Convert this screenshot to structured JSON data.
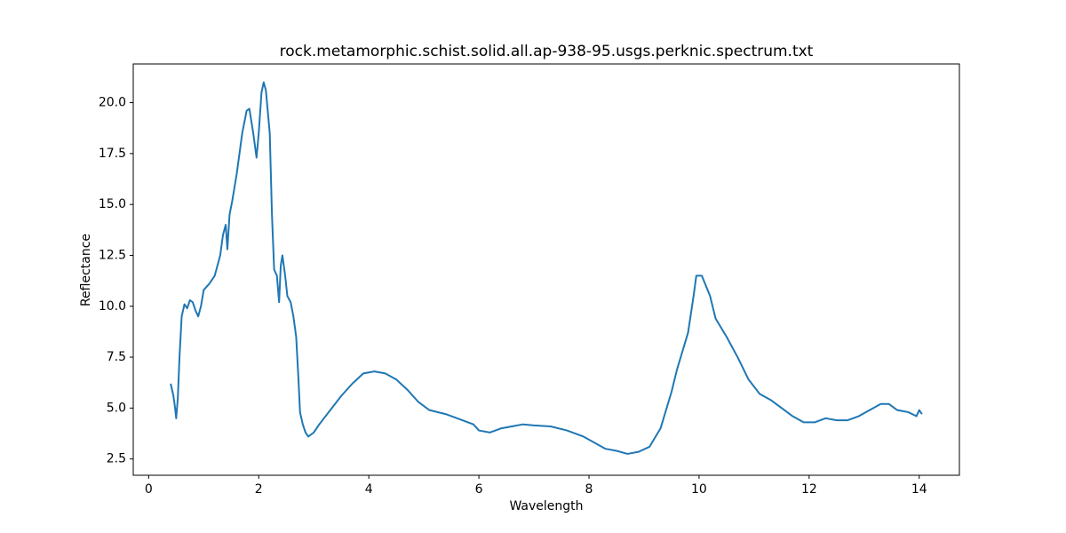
{
  "chart_data": {
    "type": "line",
    "title": "rock.metamorphic.schist.solid.all.ap-938-95.usgs.perknic.spectrum.txt",
    "xlabel": "Wavelength",
    "ylabel": "Reflectance",
    "color": "#1f77b4",
    "x": [
      0.4,
      0.45,
      0.48,
      0.5,
      0.53,
      0.56,
      0.6,
      0.65,
      0.7,
      0.75,
      0.8,
      0.85,
      0.9,
      0.95,
      1.0,
      1.1,
      1.2,
      1.3,
      1.35,
      1.4,
      1.43,
      1.47,
      1.52,
      1.6,
      1.7,
      1.78,
      1.83,
      1.9,
      1.96,
      2.0,
      2.05,
      2.09,
      2.13,
      2.2,
      2.24,
      2.28,
      2.33,
      2.37,
      2.4,
      2.43,
      2.48,
      2.52,
      2.58,
      2.63,
      2.68,
      2.72,
      2.75,
      2.8,
      2.85,
      2.9,
      3.0,
      3.1,
      3.3,
      3.5,
      3.7,
      3.9,
      4.1,
      4.3,
      4.5,
      4.7,
      4.9,
      5.1,
      5.4,
      5.7,
      5.9,
      6.0,
      6.2,
      6.4,
      6.6,
      6.8,
      7.0,
      7.3,
      7.6,
      7.9,
      8.1,
      8.3,
      8.5,
      8.7,
      8.9,
      9.1,
      9.3,
      9.5,
      9.6,
      9.8,
      9.9,
      9.95,
      10.05,
      10.2,
      10.3,
      10.5,
      10.7,
      10.9,
      11.1,
      11.3,
      11.5,
      11.7,
      11.9,
      12.1,
      12.3,
      12.5,
      12.7,
      12.9,
      13.1,
      13.3,
      13.45,
      13.6,
      13.8,
      13.95,
      14.0,
      14.05
    ],
    "values": [
      6.2,
      5.6,
      5.0,
      4.5,
      5.5,
      7.5,
      9.5,
      10.1,
      9.9,
      10.3,
      10.2,
      9.8,
      9.5,
      10.0,
      10.8,
      11.1,
      11.5,
      12.5,
      13.5,
      14.0,
      12.8,
      14.5,
      15.2,
      16.5,
      18.5,
      19.6,
      19.7,
      18.5,
      17.3,
      18.5,
      20.5,
      21.0,
      20.6,
      18.5,
      14.5,
      11.8,
      11.5,
      10.2,
      12.0,
      12.5,
      11.5,
      10.5,
      10.2,
      9.5,
      8.5,
      6.5,
      4.8,
      4.2,
      3.8,
      3.6,
      3.8,
      4.2,
      4.9,
      5.6,
      6.2,
      6.7,
      6.8,
      6.7,
      6.4,
      5.9,
      5.3,
      4.9,
      4.7,
      4.4,
      4.2,
      3.9,
      3.8,
      4.0,
      4.1,
      4.2,
      4.15,
      4.1,
      3.9,
      3.6,
      3.3,
      3.0,
      2.9,
      2.75,
      2.85,
      3.1,
      4.0,
      5.8,
      6.9,
      8.7,
      10.5,
      11.5,
      11.5,
      10.5,
      9.4,
      8.5,
      7.5,
      6.4,
      5.7,
      5.4,
      5.0,
      4.6,
      4.3,
      4.3,
      4.5,
      4.4,
      4.4,
      4.6,
      4.9,
      5.2,
      5.2,
      4.9,
      4.8,
      4.6,
      4.9,
      4.7
    ],
    "xlim": [
      -0.28,
      14.73
    ],
    "ylim": [
      1.7,
      21.9
    ],
    "xticks": [
      0,
      2,
      4,
      6,
      8,
      10,
      12,
      14
    ],
    "yticks": [
      2.5,
      {
        "value": 5,
        "label": "5.0"
      },
      7.5,
      {
        "value": 10,
        "label": "10.0"
      },
      12.5,
      {
        "value": 15,
        "label": "15.0"
      },
      17.5,
      {
        "value": 20,
        "label": "20.0"
      }
    ]
  }
}
